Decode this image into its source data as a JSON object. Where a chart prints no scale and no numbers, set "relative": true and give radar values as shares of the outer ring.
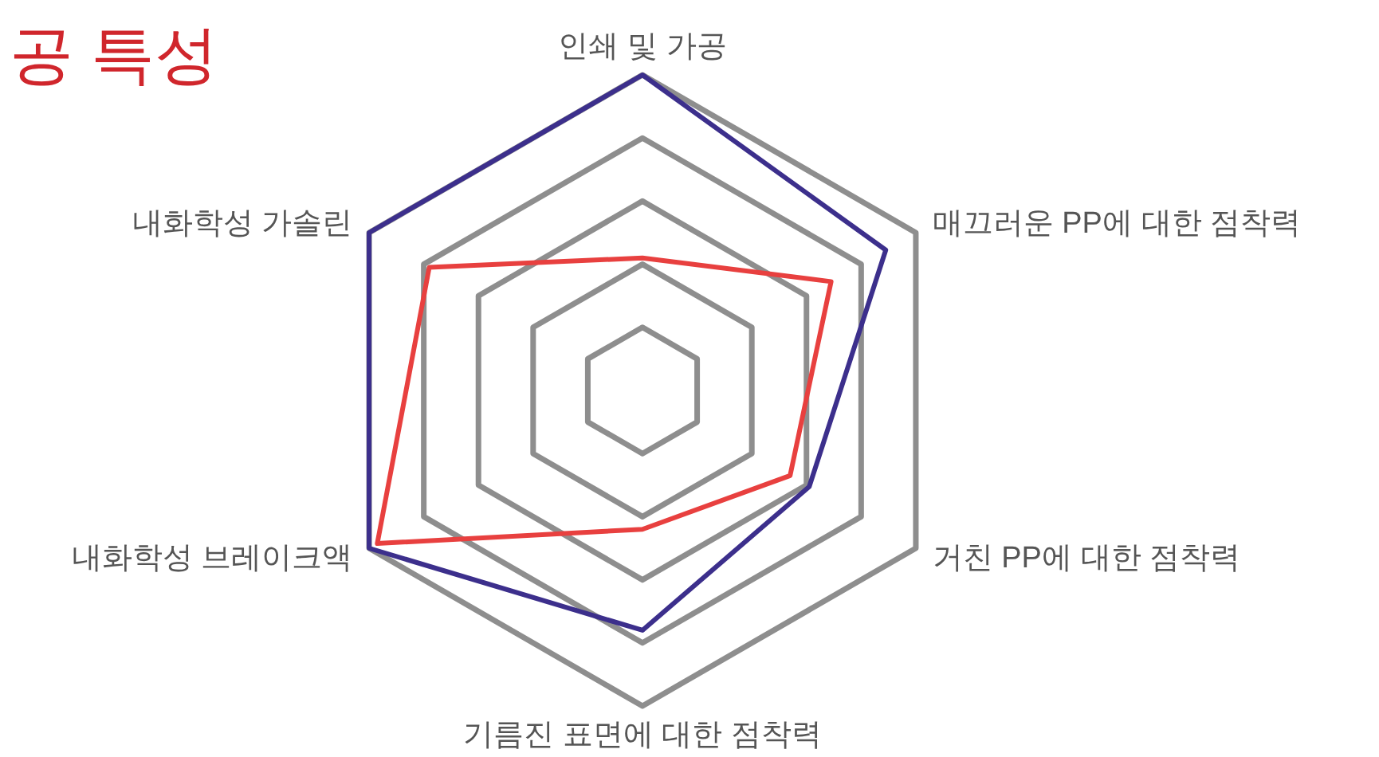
{
  "chart_data": {
    "type": "radar",
    "title": "공 특성",
    "relative": true,
    "grid": true,
    "categories": [
      "인쇄 및 가공",
      "매끄러운 PP에 대한 점착력",
      "거친 PP에 대한 점착력",
      "기름진 표면에 대한 점착력",
      "내화학성 브레이크액",
      "내화학성 가솔린"
    ],
    "series": [
      {
        "color": "#3c2f8c",
        "values": [
          1.0,
          0.89,
          0.61,
          0.76,
          1.0,
          1.0
        ]
      },
      {
        "color": "#e8403f",
        "values": [
          0.42,
          0.69,
          0.54,
          0.44,
          0.97,
          0.78
        ]
      }
    ]
  }
}
